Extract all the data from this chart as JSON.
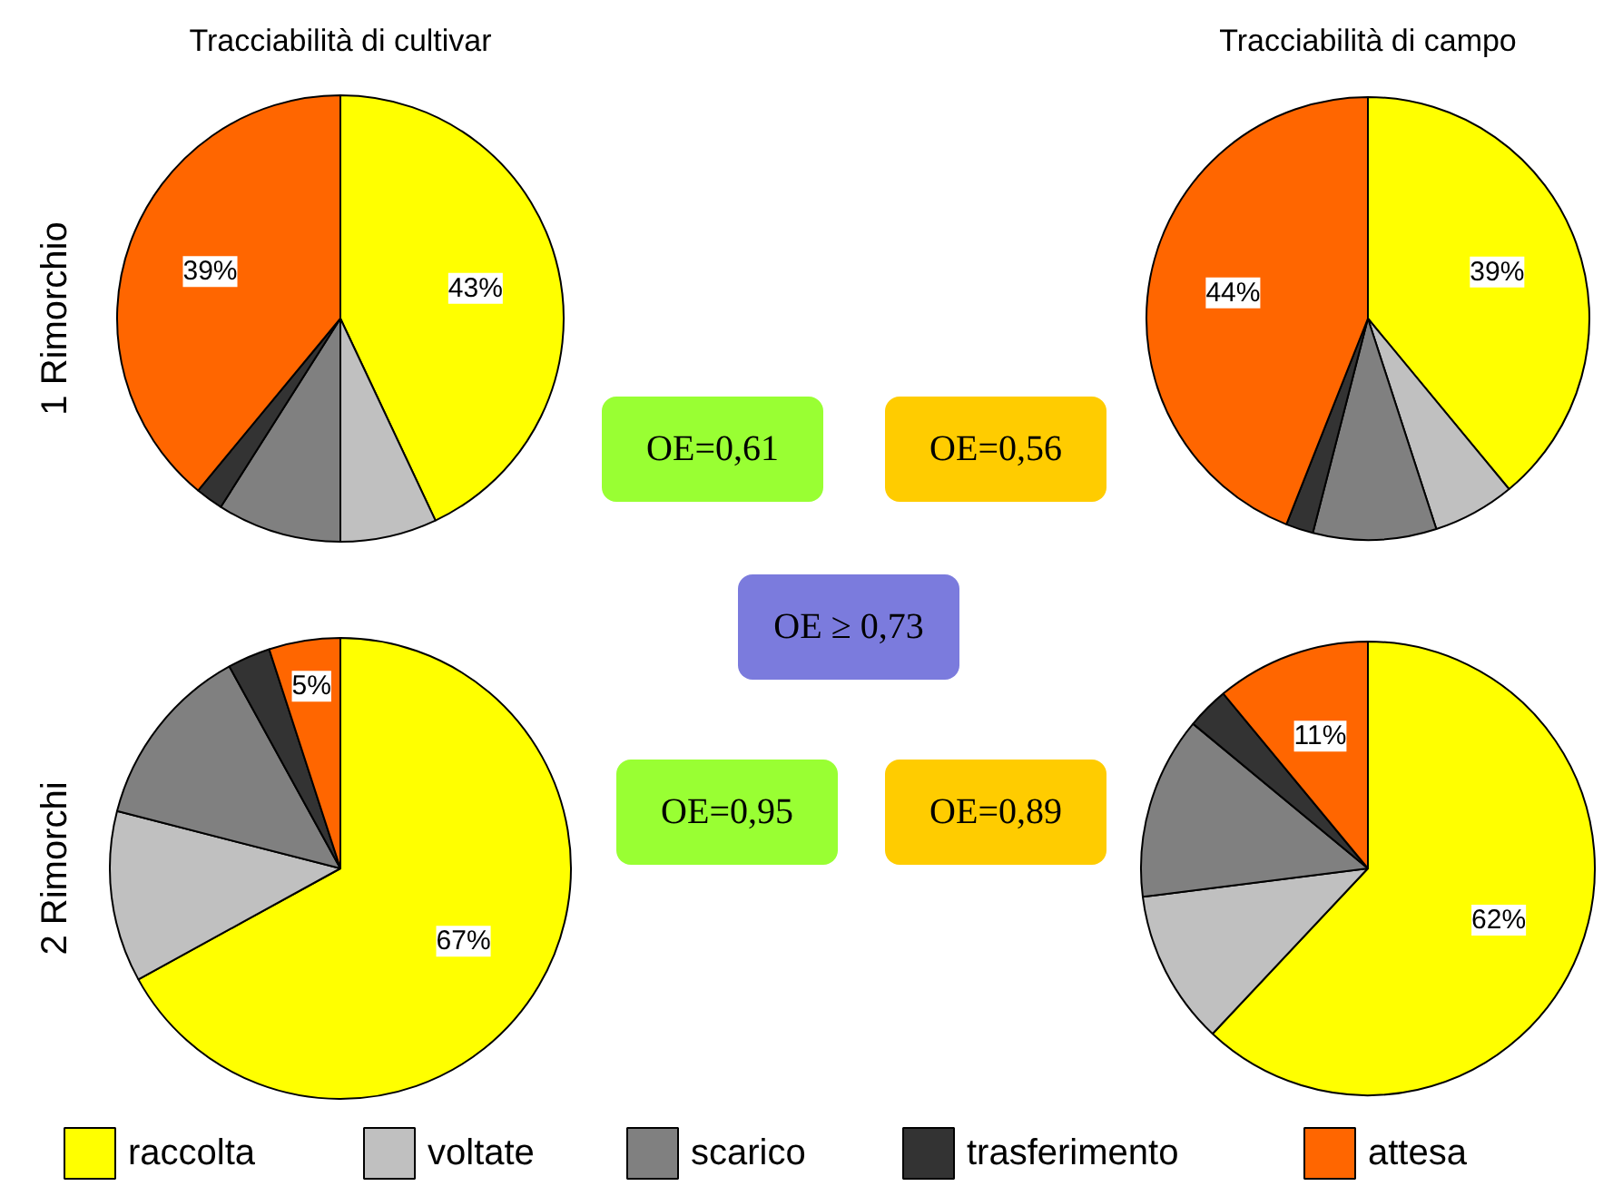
{
  "chart_data": [
    {
      "type": "pie",
      "title": "Tracciabilità di cultivar",
      "ylabel": "1 Rimorchio",
      "categories": [
        "raccolta",
        "voltate",
        "scarico",
        "trasferimento",
        "attesa"
      ],
      "values": [
        43,
        7,
        9,
        2,
        39
      ],
      "value_labels": [
        "43%",
        null,
        null,
        null,
        "39%"
      ],
      "colors": [
        "#ffff00",
        "#c0c0c0",
        "#808080",
        "#333333",
        "#ff6600"
      ],
      "legend": "bottom"
    },
    {
      "type": "pie",
      "title": "Tracciabilità di campo",
      "categories": [
        null,
        null,
        null,
        null,
        null
      ],
      "values": [
        39,
        6,
        9,
        2,
        44
      ],
      "value_labels": [
        "39%",
        null,
        null,
        null,
        "44%"
      ],
      "colors": [
        "#ffff00",
        "#c0c0c0",
        "#808080",
        "#333333",
        "#ff6600"
      ]
    },
    {
      "type": "other",
      "annotations": [
        "OE=0,61",
        "OE=0,56",
        "OE ≥ 0,73",
        "OE=0,95",
        "OE=0,89"
      ],
      "colors": [
        "#99ff33",
        "#ffcc00",
        "#7b7bdd",
        "#99ff33",
        "#ffcc00"
      ]
    },
    {
      "type": "pie",
      "ylabel": "2 Rimorchi",
      "categories": [
        null,
        null,
        null,
        null,
        null
      ],
      "values": [
        67,
        12,
        13,
        3,
        5
      ],
      "value_labels": [
        "67%",
        null,
        null,
        null,
        "5%"
      ],
      "colors": [
        "#ffff00",
        "#c0c0c0",
        "#808080",
        "#333333",
        "#ff6600"
      ]
    },
    {
      "type": "pie",
      "categories": [
        null,
        null,
        null,
        null,
        null
      ],
      "values": [
        62,
        11,
        13,
        3,
        11
      ],
      "value_labels": [
        "62%",
        null,
        null,
        null,
        "11%"
      ],
      "colors": [
        "#ffff00",
        "#c0c0c0",
        "#808080",
        "#333333",
        "#ff6600"
      ]
    }
  ]
}
